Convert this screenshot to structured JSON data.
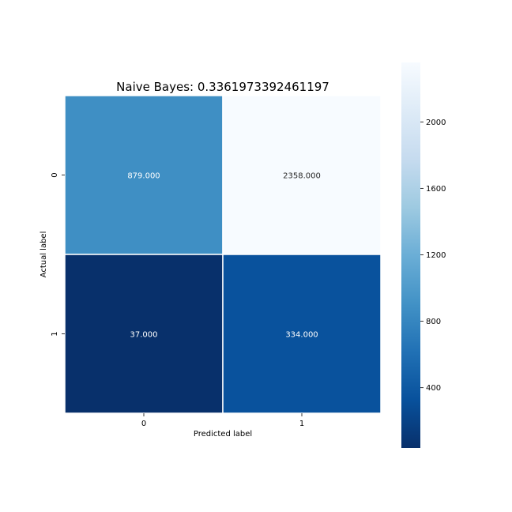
{
  "chart_data": {
    "type": "heatmap",
    "title": "Naive Bayes: 0.3361973392461197",
    "xlabel": "Predicted label",
    "ylabel": "Actual label",
    "x_categories": [
      "0",
      "1"
    ],
    "y_categories": [
      "0",
      "1"
    ],
    "values": [
      [
        879,
        2358
      ],
      [
        37,
        334
      ]
    ],
    "cell_labels": [
      [
        "879.000",
        "2358.000"
      ],
      [
        "37.000",
        "334.000"
      ]
    ],
    "colormap": "Blues_r",
    "colorbar": {
      "range": [
        37,
        2358
      ],
      "ticks": [
        400,
        800,
        1200,
        1600,
        2000
      ],
      "tick_labels": [
        "400",
        "800",
        "1200",
        "1600",
        "2000"
      ]
    },
    "grid": false,
    "colors": {
      "cell_border": "#ffffff",
      "text": "#000000"
    }
  }
}
